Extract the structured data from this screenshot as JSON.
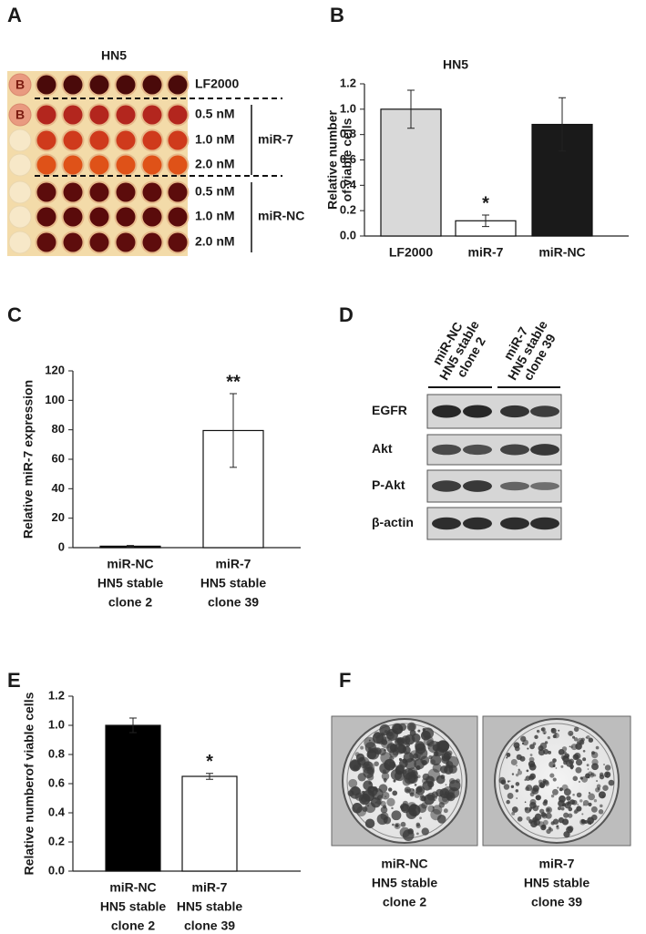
{
  "panel_a": {
    "letter": "A",
    "title": "HN5",
    "blank_label": "B",
    "rows": [
      "LF2000",
      "0.5 nM",
      "1.0 nM",
      "2.0 nM",
      "0.5 nM",
      "1.0 nM",
      "2.0 nM"
    ],
    "groups": [
      "miR-7",
      "miR-NC"
    ]
  },
  "chart_data": [
    {
      "type": "bar",
      "letter": "B",
      "title": "HN5",
      "y_label": [
        "Relative number",
        "of viable cells"
      ],
      "categories": [
        [
          "LF2000"
        ],
        [
          "miR-7"
        ],
        [
          "miR-NC"
        ]
      ],
      "values": [
        1.0,
        0.12,
        0.88
      ],
      "errors": [
        0.15,
        0.045,
        0.21
      ],
      "colors": [
        "#d9d9d9",
        "#ffffff",
        "#1a1a1a"
      ],
      "value_annotations": [
        null,
        "*",
        null
      ],
      "ylim": [
        0,
        1.2
      ],
      "yticks": [
        {
          "value": 0,
          "label": "0.0"
        },
        {
          "value": 0.2,
          "label": "0.2"
        },
        {
          "value": 0.4,
          "label": "0.4"
        },
        {
          "value": 0.6,
          "label": "0.6"
        },
        {
          "value": 0.8,
          "label": "0.8"
        },
        {
          "value": 1.0,
          "label": "1.0"
        },
        {
          "value": 1.2,
          "label": "1.2"
        }
      ]
    },
    {
      "type": "bar",
      "letter": "C",
      "y_label": [
        "Relative miR-7 expression"
      ],
      "categories": [
        [
          "miR-NC",
          "HN5 stable",
          "clone 2"
        ],
        [
          "miR-7",
          "HN5 stable",
          "clone 39"
        ]
      ],
      "values": [
        1,
        79.5
      ],
      "errors": [
        0.5,
        25
      ],
      "colors": [
        "#000000",
        "#ffffff"
      ],
      "value_annotations": [
        null,
        "**"
      ],
      "ylim": [
        0,
        120
      ],
      "yticks": [
        0,
        20,
        40,
        60,
        80,
        100,
        120
      ]
    },
    {
      "type": "bar",
      "letter": "E",
      "y_label": [
        "Relative numberof viable cells"
      ],
      "categories": [
        [
          "miR-NC",
          "HN5 stable",
          "clone 2"
        ],
        [
          "miR-7",
          "HN5 stable",
          "clone 39"
        ]
      ],
      "values": [
        1.0,
        0.65
      ],
      "errors": [
        0.05,
        0.02
      ],
      "colors": [
        "#000000",
        "#ffffff"
      ],
      "value_annotations": [
        null,
        "*"
      ],
      "ylim": [
        0,
        1.2
      ],
      "yticks": [
        {
          "value": 0,
          "label": "0.0"
        },
        {
          "value": 0.2,
          "label": "0.2"
        },
        {
          "value": 0.4,
          "label": "0.4"
        },
        {
          "value": 0.6,
          "label": "0.6"
        },
        {
          "value": 0.8,
          "label": "0.8"
        },
        {
          "value": 1.0,
          "label": "1.0"
        },
        {
          "value": 1.2,
          "label": "1.2"
        }
      ]
    }
  ],
  "panel_d": {
    "letter": "D",
    "columns": [
      [
        "miR-NC",
        "HN5 stable",
        "clone 2"
      ],
      [
        "miR-7",
        "HN5 stable",
        "clone 39"
      ]
    ],
    "rows": [
      "EGFR",
      "Akt",
      "P-Akt",
      "β-actin"
    ]
  },
  "panel_f": {
    "letter": "F",
    "captions": [
      [
        "miR-NC",
        "HN5 stable",
        "clone 2"
      ],
      [
        "miR-7",
        "HN5 stable",
        "clone 39"
      ]
    ]
  }
}
